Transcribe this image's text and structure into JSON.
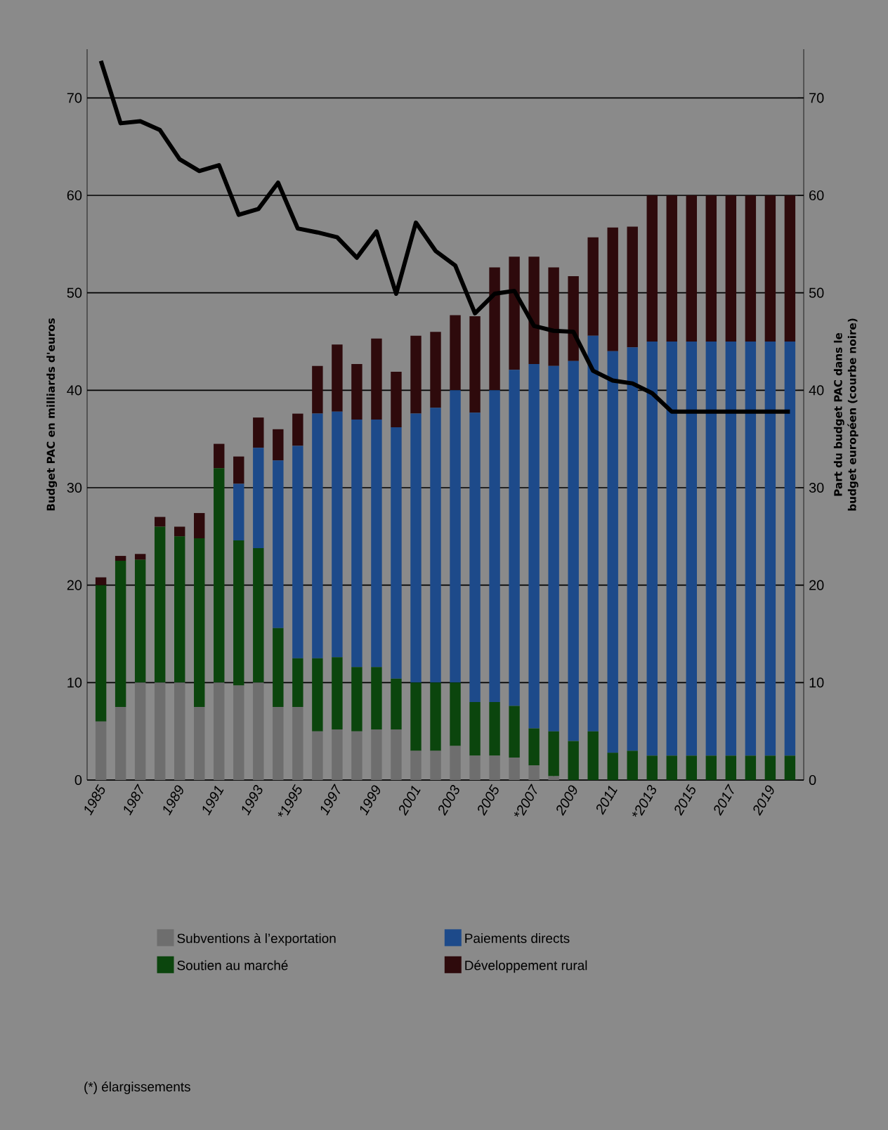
{
  "chart_data": {
    "type": "bar",
    "stacked": true,
    "categories": [
      "1985",
      null,
      "1987",
      null,
      "1989",
      null,
      "1991",
      null,
      "1993",
      null,
      "*1995",
      null,
      "1997",
      null,
      "1999",
      null,
      "2001",
      null,
      "2003",
      null,
      "2005",
      null,
      "*2007",
      null,
      "2009",
      null,
      "2011",
      null,
      "*2013",
      null,
      "2015",
      null,
      "2017",
      null,
      "2019",
      null
    ],
    "series": [
      {
        "name": "Subventions à l’exportation",
        "color": "#6e6e6e",
        "values": [
          6,
          7.5,
          10,
          10,
          10,
          7.5,
          10,
          9.7,
          10,
          7.5,
          7.5,
          5,
          5.2,
          5,
          5.2,
          5.2,
          3,
          3,
          3.5,
          2.5,
          2.5,
          2.3,
          1.5,
          0.4,
          0,
          0,
          0,
          0,
          0,
          0,
          0,
          0,
          0,
          0,
          0,
          0
        ]
      },
      {
        "name": "Soutien au marché",
        "color": "#0b450d",
        "values": [
          14,
          15,
          12.6,
          16,
          15,
          17.3,
          22,
          14.9,
          13.8,
          8.1,
          5,
          7.5,
          7.4,
          6.6,
          6.4,
          5.2,
          7,
          7,
          6.5,
          5.5,
          5.5,
          5.3,
          3.8,
          4.6,
          4,
          5,
          2.8,
          3,
          2.5,
          2.5,
          2.5,
          2.5,
          2.5,
          2.5,
          2.5,
          2.5
        ]
      },
      {
        "name": "Paiements directs",
        "color": "#1d4a8a",
        "values": [
          0,
          0,
          0,
          0,
          0,
          0,
          0,
          5.8,
          10.3,
          17.2,
          21.8,
          25.1,
          25.2,
          25.4,
          25.4,
          25.8,
          27.6,
          28.2,
          30,
          29.7,
          32,
          34.5,
          37.4,
          37.5,
          39,
          40.6,
          41.2,
          41.4,
          42.5,
          42.5,
          42.5,
          42.5,
          42.5,
          42.5,
          42.5,
          42.5
        ]
      },
      {
        "name": "Développement rural",
        "color": "#2e0a0c",
        "values": [
          0.8,
          0.5,
          0.6,
          1,
          1,
          2.6,
          2.5,
          2.8,
          3.1,
          3.2,
          3.3,
          4.9,
          6.9,
          5.7,
          8.3,
          5.7,
          8,
          7.8,
          7.7,
          9.9,
          12.6,
          11.6,
          11,
          10.1,
          8.7,
          10.1,
          12.7,
          12.4,
          15,
          15,
          15,
          15,
          15,
          15,
          15,
          15
        ]
      },
      {
        "type": "line",
        "axis": "y2",
        "color": "#000000",
        "values": [
          73.8,
          67.4,
          67.6,
          66.7,
          63.7,
          62.5,
          63.1,
          58.0,
          58.6,
          61.3,
          56.6,
          56.2,
          55.7,
          53.6,
          56.3,
          49.9,
          57.2,
          54.3,
          52.8,
          47.9,
          49.9,
          50.2,
          46.6,
          46.1,
          46.0,
          42.0,
          41.0,
          40.7,
          39.7,
          37.8,
          37.8,
          37.8,
          37.8,
          37.8,
          37.8,
          37.8
        ]
      }
    ],
    "ylim": [
      0,
      75
    ],
    "yticks": [
      0,
      10,
      20,
      30,
      40,
      50,
      60,
      70
    ],
    "y2lim": [
      0,
      75
    ],
    "y2ticks": [
      0,
      10,
      20,
      30,
      40,
      50,
      60,
      70
    ],
    "ylabel": "Budget PAC en milliards d'euros",
    "y2label": "Part du budget PAC dans le budget européen (courbe noire)",
    "grid": "y",
    "legend": "bottom",
    "annotations": [
      "(*) élargissements"
    ]
  }
}
